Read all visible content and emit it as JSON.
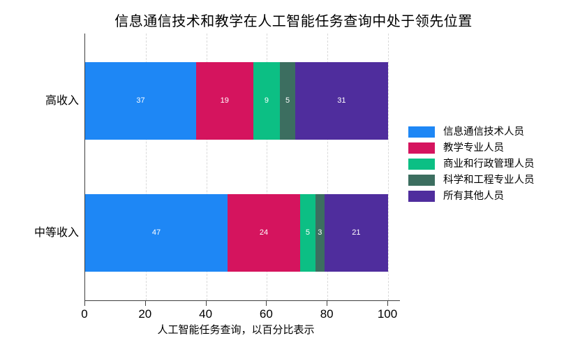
{
  "chart_data": {
    "type": "bar",
    "orientation": "horizontal-stacked",
    "title": "信息通信技术和教学在人工智能任务查询中处于领先位置",
    "xlabel": "人工智能任务查询，以百分比表示",
    "categories": [
      "高收入",
      "中等收入"
    ],
    "series": [
      {
        "name": "信息通信技术人员",
        "color": "#1e87f5",
        "values": [
          37,
          47
        ]
      },
      {
        "name": "教学专业人员",
        "color": "#d5145e",
        "values": [
          19,
          24
        ]
      },
      {
        "name": "商业和行政管理人员",
        "color": "#0cbf84",
        "values": [
          9,
          5
        ]
      },
      {
        "name": "科学和工程专业人员",
        "color": "#3c6e60",
        "values": [
          5,
          3
        ]
      },
      {
        "name": "所有其他人员",
        "color": "#4f2d9d",
        "values": [
          31,
          21
        ]
      }
    ],
    "x_ticks": [
      0,
      20,
      40,
      60,
      80,
      100
    ],
    "xlim": [
      0,
      100
    ],
    "grid": "vertical-dashed",
    "grid_color": "#d9d9d9",
    "axis_color": "#3f3f3f",
    "value_label_color": "#ffffff",
    "legend_position": "right"
  }
}
